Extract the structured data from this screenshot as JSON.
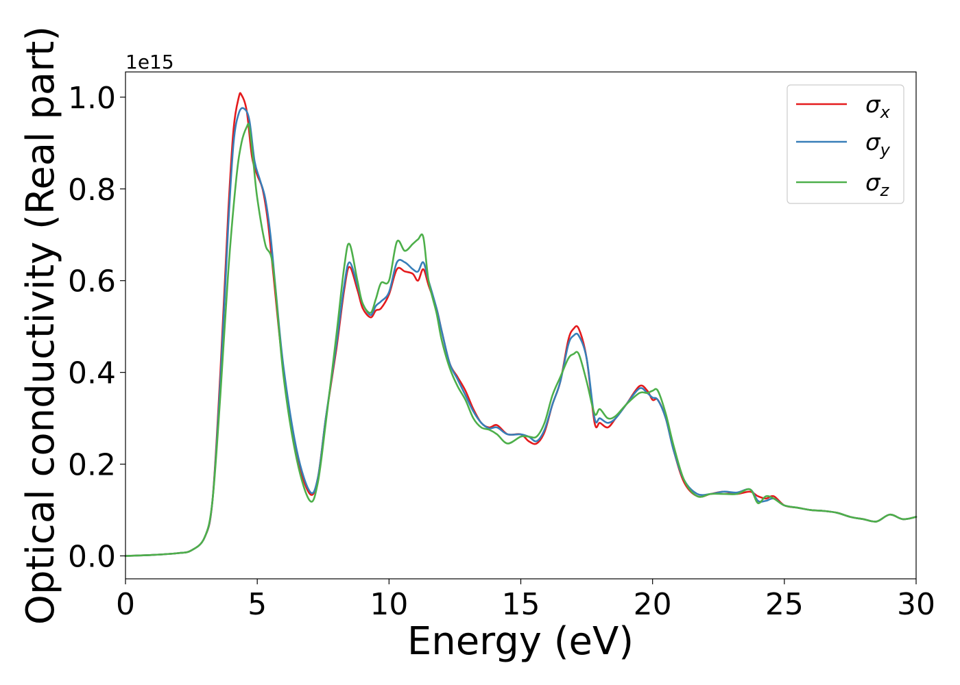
{
  "chart_data": {
    "type": "line",
    "xlabel": "Energy (eV)",
    "ylabel": "Optical conductivity (Real part)",
    "y_offset_label": "1e15",
    "xlim": [
      0,
      30
    ],
    "ylim": [
      -0.05,
      1.055
    ],
    "xticks": [
      0,
      5,
      10,
      15,
      20,
      25,
      30
    ],
    "xtick_labels": [
      "0",
      "5",
      "10",
      "15",
      "20",
      "25",
      "30"
    ],
    "yticks": [
      0.0,
      0.2,
      0.4,
      0.6,
      0.8,
      1.0
    ],
    "ytick_labels": [
      "0.0",
      "0.2",
      "0.4",
      "0.6",
      "0.8",
      "1.0"
    ],
    "grid": false,
    "legend_position": "top-right",
    "series": [
      {
        "name": "σ",
        "name_subscript": "x",
        "color": "#e41a1c",
        "x": [
          0,
          1,
          2,
          2.5,
          3,
          3.3,
          3.6,
          3.9,
          4.1,
          4.3,
          4.4,
          4.6,
          4.8,
          5.0,
          5.2,
          5.4,
          5.6,
          6.0,
          6.5,
          7.0,
          7.3,
          7.6,
          8.0,
          8.3,
          8.5,
          8.8,
          9.0,
          9.3,
          9.5,
          9.7,
          10.0,
          10.3,
          10.6,
          10.9,
          11.1,
          11.3,
          11.5,
          11.8,
          12.0,
          12.3,
          12.6,
          12.9,
          13.2,
          13.5,
          13.8,
          14.1,
          14.5,
          15.0,
          15.3,
          15.6,
          15.9,
          16.2,
          16.5,
          16.8,
          17.0,
          17.2,
          17.5,
          17.8,
          18.0,
          18.3,
          18.6,
          19.0,
          19.5,
          19.8,
          20.0,
          20.2,
          20.5,
          20.8,
          21.2,
          21.7,
          22.2,
          22.7,
          23.2,
          23.7,
          24.0,
          24.3,
          24.6,
          25.0,
          25.5,
          26.0,
          26.5,
          27.0,
          27.5,
          28.0,
          28.5,
          29.0,
          29.5,
          30.0
        ],
        "values": [
          0.0,
          0.002,
          0.006,
          0.012,
          0.04,
          0.12,
          0.4,
          0.75,
          0.93,
          1.0,
          1.005,
          0.97,
          0.87,
          0.83,
          0.8,
          0.73,
          0.62,
          0.4,
          0.22,
          0.135,
          0.17,
          0.3,
          0.45,
          0.58,
          0.63,
          0.58,
          0.54,
          0.52,
          0.535,
          0.54,
          0.57,
          0.625,
          0.62,
          0.615,
          0.6,
          0.625,
          0.59,
          0.54,
          0.49,
          0.42,
          0.39,
          0.36,
          0.32,
          0.29,
          0.28,
          0.285,
          0.265,
          0.265,
          0.25,
          0.245,
          0.27,
          0.33,
          0.38,
          0.47,
          0.495,
          0.495,
          0.43,
          0.29,
          0.29,
          0.28,
          0.3,
          0.33,
          0.37,
          0.36,
          0.34,
          0.34,
          0.3,
          0.23,
          0.16,
          0.13,
          0.135,
          0.14,
          0.135,
          0.14,
          0.13,
          0.125,
          0.13,
          0.11,
          0.105,
          0.1,
          0.098,
          0.094,
          0.085,
          0.08,
          0.075,
          0.09,
          0.08,
          0.085
        ]
      },
      {
        "name": "σ",
        "name_subscript": "y",
        "color": "#377eb8",
        "x": [
          0,
          1,
          2,
          2.5,
          3,
          3.3,
          3.6,
          3.9,
          4.1,
          4.3,
          4.5,
          4.7,
          4.9,
          5.1,
          5.3,
          5.5,
          5.7,
          6.0,
          6.5,
          7.0,
          7.3,
          7.6,
          8.0,
          8.3,
          8.5,
          8.8,
          9.0,
          9.3,
          9.5,
          9.7,
          10.0,
          10.3,
          10.6,
          10.9,
          11.1,
          11.3,
          11.5,
          11.8,
          12.0,
          12.3,
          12.6,
          12.9,
          13.2,
          13.5,
          13.8,
          14.1,
          14.5,
          15.0,
          15.3,
          15.6,
          15.9,
          16.2,
          16.5,
          16.8,
          17.0,
          17.2,
          17.5,
          17.8,
          18.0,
          18.3,
          18.6,
          19.0,
          19.5,
          19.8,
          20.0,
          20.2,
          20.5,
          20.8,
          21.2,
          21.7,
          22.2,
          22.7,
          23.2,
          23.7,
          24.0,
          24.3,
          24.6,
          25.0,
          25.5,
          26.0,
          26.5,
          27.0,
          27.5,
          28.0,
          28.5,
          29.0,
          29.5,
          30.0
        ],
        "values": [
          0.0,
          0.002,
          0.006,
          0.012,
          0.04,
          0.12,
          0.38,
          0.72,
          0.9,
          0.965,
          0.975,
          0.95,
          0.86,
          0.82,
          0.78,
          0.7,
          0.58,
          0.41,
          0.23,
          0.14,
          0.17,
          0.3,
          0.46,
          0.59,
          0.64,
          0.59,
          0.55,
          0.525,
          0.545,
          0.555,
          0.575,
          0.64,
          0.64,
          0.625,
          0.62,
          0.64,
          0.6,
          0.54,
          0.49,
          0.42,
          0.385,
          0.35,
          0.315,
          0.29,
          0.278,
          0.28,
          0.265,
          0.265,
          0.26,
          0.25,
          0.275,
          0.33,
          0.38,
          0.46,
          0.48,
          0.48,
          0.43,
          0.3,
          0.3,
          0.29,
          0.3,
          0.33,
          0.365,
          0.355,
          0.345,
          0.34,
          0.3,
          0.23,
          0.165,
          0.135,
          0.135,
          0.14,
          0.138,
          0.145,
          0.12,
          0.12,
          0.125,
          0.11,
          0.105,
          0.1,
          0.098,
          0.094,
          0.085,
          0.08,
          0.075,
          0.09,
          0.08,
          0.085
        ]
      },
      {
        "name": "σ",
        "name_subscript": "z",
        "color": "#4daf4a",
        "x": [
          0,
          1,
          2,
          2.5,
          3,
          3.3,
          3.6,
          3.9,
          4.2,
          4.4,
          4.6,
          4.7,
          4.85,
          5.0,
          5.3,
          5.6,
          6.0,
          6.5,
          7.0,
          7.3,
          7.6,
          8.0,
          8.3,
          8.5,
          8.8,
          9.0,
          9.3,
          9.5,
          9.7,
          10.0,
          10.3,
          10.6,
          10.9,
          11.1,
          11.3,
          11.5,
          11.8,
          12.0,
          12.3,
          12.6,
          12.9,
          13.2,
          13.5,
          13.8,
          14.1,
          14.5,
          15.0,
          15.3,
          15.6,
          15.9,
          16.2,
          16.5,
          16.8,
          17.0,
          17.2,
          17.5,
          17.8,
          18.0,
          18.3,
          18.6,
          19.0,
          19.5,
          19.8,
          20.0,
          20.2,
          20.5,
          20.8,
          21.2,
          21.7,
          22.2,
          22.7,
          23.2,
          23.7,
          24.0,
          24.3,
          24.6,
          25.0,
          25.5,
          26.0,
          26.5,
          27.0,
          27.5,
          28.0,
          28.5,
          29.0,
          29.5,
          30.0
        ],
        "values": [
          0.0,
          0.002,
          0.006,
          0.012,
          0.04,
          0.12,
          0.35,
          0.62,
          0.82,
          0.9,
          0.935,
          0.935,
          0.86,
          0.78,
          0.68,
          0.63,
          0.39,
          0.21,
          0.12,
          0.16,
          0.29,
          0.48,
          0.63,
          0.68,
          0.6,
          0.55,
          0.53,
          0.56,
          0.595,
          0.6,
          0.685,
          0.665,
          0.68,
          0.69,
          0.695,
          0.6,
          0.53,
          0.47,
          0.41,
          0.37,
          0.34,
          0.3,
          0.28,
          0.275,
          0.265,
          0.245,
          0.26,
          0.26,
          0.26,
          0.29,
          0.35,
          0.39,
          0.43,
          0.44,
          0.44,
          0.38,
          0.31,
          0.32,
          0.3,
          0.305,
          0.33,
          0.355,
          0.355,
          0.36,
          0.36,
          0.31,
          0.24,
          0.165,
          0.13,
          0.135,
          0.135,
          0.135,
          0.145,
          0.115,
          0.13,
          0.125,
          0.11,
          0.105,
          0.1,
          0.098,
          0.094,
          0.085,
          0.08,
          0.075,
          0.09,
          0.08,
          0.085
        ]
      }
    ]
  }
}
